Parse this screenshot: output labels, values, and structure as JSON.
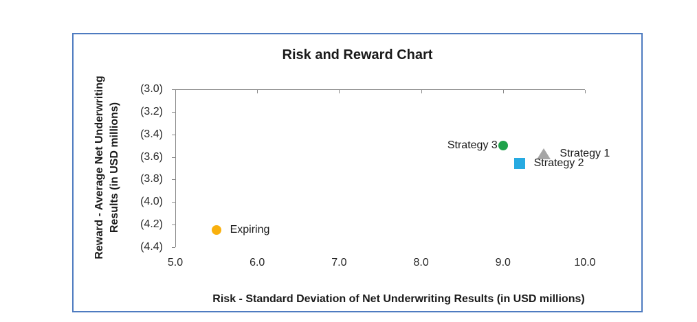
{
  "chart_data": {
    "type": "scatter",
    "title": "Risk and Reward Chart",
    "xlabel": "Risk - Standard Deviation of Net Underwriting Results (in USD millions)",
    "ylabel": "Reward - Average Net Underwriting Results (in USD millions)",
    "ylabel_lines": [
      "Reward - Average Net Underwriting",
      "Results (in USD millions)"
    ],
    "xlim": [
      5.0,
      10.0
    ],
    "ylim": [
      -4.4,
      -3.0
    ],
    "grid": false,
    "legend_position": "none",
    "x_ticks": [
      {
        "value": 5.0,
        "label": "5.0"
      },
      {
        "value": 6.0,
        "label": "6.0"
      },
      {
        "value": 7.0,
        "label": "7.0"
      },
      {
        "value": 8.0,
        "label": "8.0"
      },
      {
        "value": 9.0,
        "label": "9.0"
      },
      {
        "value": 10.0,
        "label": "10.0"
      }
    ],
    "y_ticks": [
      {
        "value": -3.0,
        "label": "(3.0)"
      },
      {
        "value": -3.2,
        "label": "(3.2)"
      },
      {
        "value": -3.4,
        "label": "(3.4)"
      },
      {
        "value": -3.6,
        "label": "(3.6)"
      },
      {
        "value": -3.8,
        "label": "(3.8)"
      },
      {
        "value": -4.0,
        "label": "(4.0)"
      },
      {
        "value": -4.2,
        "label": "(4.2)"
      },
      {
        "value": -4.4,
        "label": "(4.4)"
      }
    ],
    "points": [
      {
        "name": "Strategy 1",
        "x": 9.5,
        "y": -3.57,
        "marker": "triangle",
        "color": "#a6a6a6",
        "label_side": "right"
      },
      {
        "name": "Strategy 2",
        "x": 9.2,
        "y": -3.66,
        "marker": "square",
        "color": "#27aae1",
        "label_side": "right"
      },
      {
        "name": "Strategy 3",
        "x": 9.0,
        "y": -3.5,
        "marker": "circle",
        "color": "#1fa24a",
        "label_side": "left"
      },
      {
        "name": "Expiring",
        "x": 5.5,
        "y": -4.25,
        "marker": "circle",
        "color": "#f9b00d",
        "label_side": "right"
      }
    ],
    "axis_color": "#8a8a8a",
    "tick_label_color": "#262626",
    "text_color": "#1a1a1a",
    "frame_border_color": "#4e7bc0",
    "background_color": "#ffffff"
  }
}
